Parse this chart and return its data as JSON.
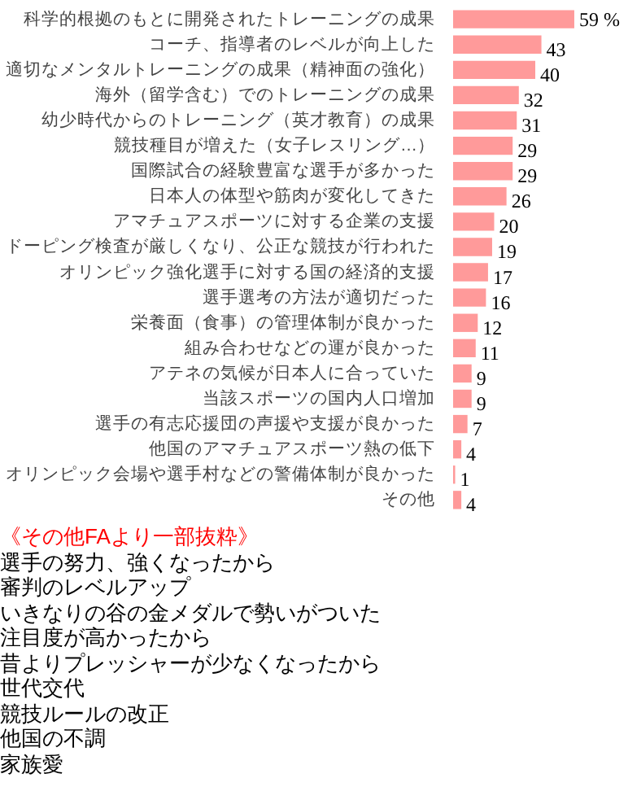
{
  "chart_data": {
    "type": "bar",
    "orientation": "horizontal",
    "color": "#ff9a9a",
    "categories": [
      "科学的根拠のもとに開発されたトレーニングの成果",
      "コーチ、指導者のレベルが向上した",
      "適切なメンタルトレーニングの成果（精神面の強化）",
      "海外（留学含む）でのトレーニングの成果",
      "幼少時代からのトレーニング（英才教育）の成果",
      "競技種目が増えた（女子レスリング…）",
      "国際試合の経験豊富な選手が多かった",
      "日本人の体型や筋肉が変化してきた",
      "アマチュアスポーツに対する企業の支援",
      "ドーピング検査が厳しくなり、公正な競技が行われた",
      "オリンピック強化選手に対する国の経済的支援",
      "選手選考の方法が適切だった",
      "栄養面（食事）の管理体制が良かった",
      "組み合わせなどの運が良かった",
      "アテネの気候が日本人に合っていた",
      "当該スポーツの国内人口増加",
      "選手の有志応援団の声援や支援が良かった",
      "他国のアマチュアスポーツ熱の低下",
      "オリンピック会場や選手村などの警備体制が良かった",
      "その他"
    ],
    "values": [
      59,
      43,
      40,
      32,
      31,
      29,
      29,
      26,
      20,
      19,
      17,
      16,
      12,
      11,
      9,
      9,
      7,
      4,
      1,
      4
    ],
    "value_labels": [
      "59  %",
      "43",
      "40",
      "32",
      "31",
      "29",
      "29",
      "26",
      "20",
      "19",
      "17",
      "16",
      "12",
      "11",
      "9",
      "9",
      "7",
      "4",
      "1",
      "4"
    ],
    "grid": false,
    "annotations": [
      "《その他FAより一部抜粋》",
      "選手の努力、強くなったから",
      "審判のレベルアップ",
      "いきなりの谷の金メダルで勢いがついた",
      "注目度が高かったから",
      "昔よりプレッシャーが少なくなったから",
      "世代交代",
      "競技ルールの改正",
      "他国の不調",
      "家族愛"
    ]
  }
}
